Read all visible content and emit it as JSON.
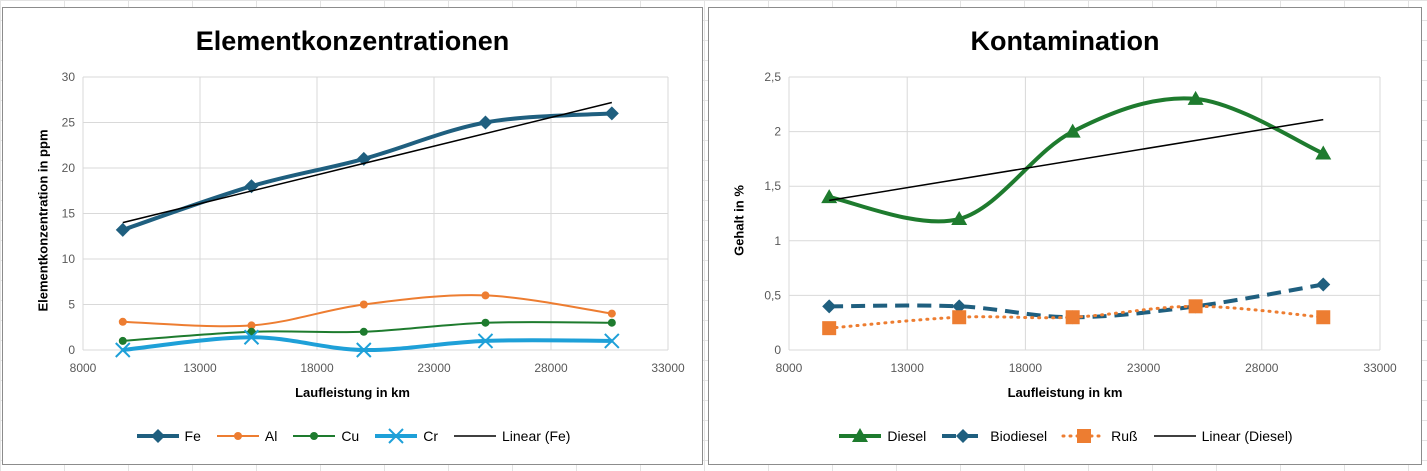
{
  "chart_data": [
    {
      "type": "line",
      "title": "Elementkonzentrationen",
      "xlabel": "Laufleistung in km",
      "ylabel": "Elementkonzentration in ppm",
      "xlim": [
        8000,
        33000
      ],
      "ylim": [
        0,
        30
      ],
      "x_ticks": [
        "8000",
        "13000",
        "18000",
        "23000",
        "28000",
        "33000"
      ],
      "y_ticks": [
        "0",
        "5",
        "10",
        "15",
        "20",
        "25",
        "30"
      ],
      "grid": true,
      "legend_position": "bottom",
      "x": [
        9700,
        15200,
        20000,
        25200,
        30600
      ],
      "series": [
        {
          "name": "Fe",
          "values": [
            13.2,
            18,
            21,
            25,
            26
          ],
          "color": "#1f5f7f",
          "marker": "diamond",
          "dash": "solid",
          "width": 4,
          "smooth": true
        },
        {
          "name": "Al",
          "values": [
            3.1,
            2.7,
            5,
            6,
            4
          ],
          "color": "#ed7d31",
          "marker": "circle",
          "dash": "solid",
          "width": 2,
          "smooth": true
        },
        {
          "name": "Cu",
          "values": [
            1,
            2,
            2,
            3,
            3
          ],
          "color": "#1e7b2e",
          "marker": "circle",
          "dash": "solid",
          "width": 2,
          "smooth": true
        },
        {
          "name": "Cr",
          "values": [
            0,
            1.4,
            0,
            1,
            1
          ],
          "color": "#1ea0d8",
          "marker": "x",
          "dash": "solid",
          "width": 4,
          "smooth": true
        }
      ],
      "trendline": {
        "name": "Linear (Fe)",
        "x": [
          9700,
          30600
        ],
        "values": [
          14,
          27.2
        ],
        "color": "#000000"
      }
    },
    {
      "type": "line",
      "title": "Kontamination",
      "xlabel": "Laufleistung in km",
      "ylabel": "Gehalt in %",
      "xlim": [
        8000,
        33000
      ],
      "ylim": [
        0,
        2.5
      ],
      "x_ticks": [
        "8000",
        "13000",
        "18000",
        "23000",
        "28000",
        "33000"
      ],
      "y_ticks": [
        "0",
        "0,5",
        "1",
        "1,5",
        "2",
        "2,5"
      ],
      "grid": true,
      "legend_position": "bottom",
      "x": [
        9700,
        15200,
        20000,
        25200,
        30600
      ],
      "series": [
        {
          "name": "Diesel",
          "values": [
            1.4,
            1.2,
            2,
            2.3,
            1.8
          ],
          "color": "#1e7b2e",
          "marker": "triangle",
          "dash": "solid",
          "width": 4,
          "smooth": true
        },
        {
          "name": "Biodiesel",
          "values": [
            0.4,
            0.4,
            0.3,
            0.4,
            0.6
          ],
          "color": "#1f5f7f",
          "marker": "diamond",
          "dash": "dashed",
          "width": 4,
          "smooth": true
        },
        {
          "name": "Ruß",
          "values": [
            0.2,
            0.3,
            0.3,
            0.4,
            0.3
          ],
          "color": "#ed7d31",
          "marker": "square",
          "dash": "dotted",
          "width": 3,
          "smooth": true
        }
      ],
      "trendline": {
        "name": "Linear (Diesel)",
        "x": [
          9700,
          30600
        ],
        "values": [
          1.37,
          2.11
        ],
        "color": "#000000"
      }
    }
  ]
}
